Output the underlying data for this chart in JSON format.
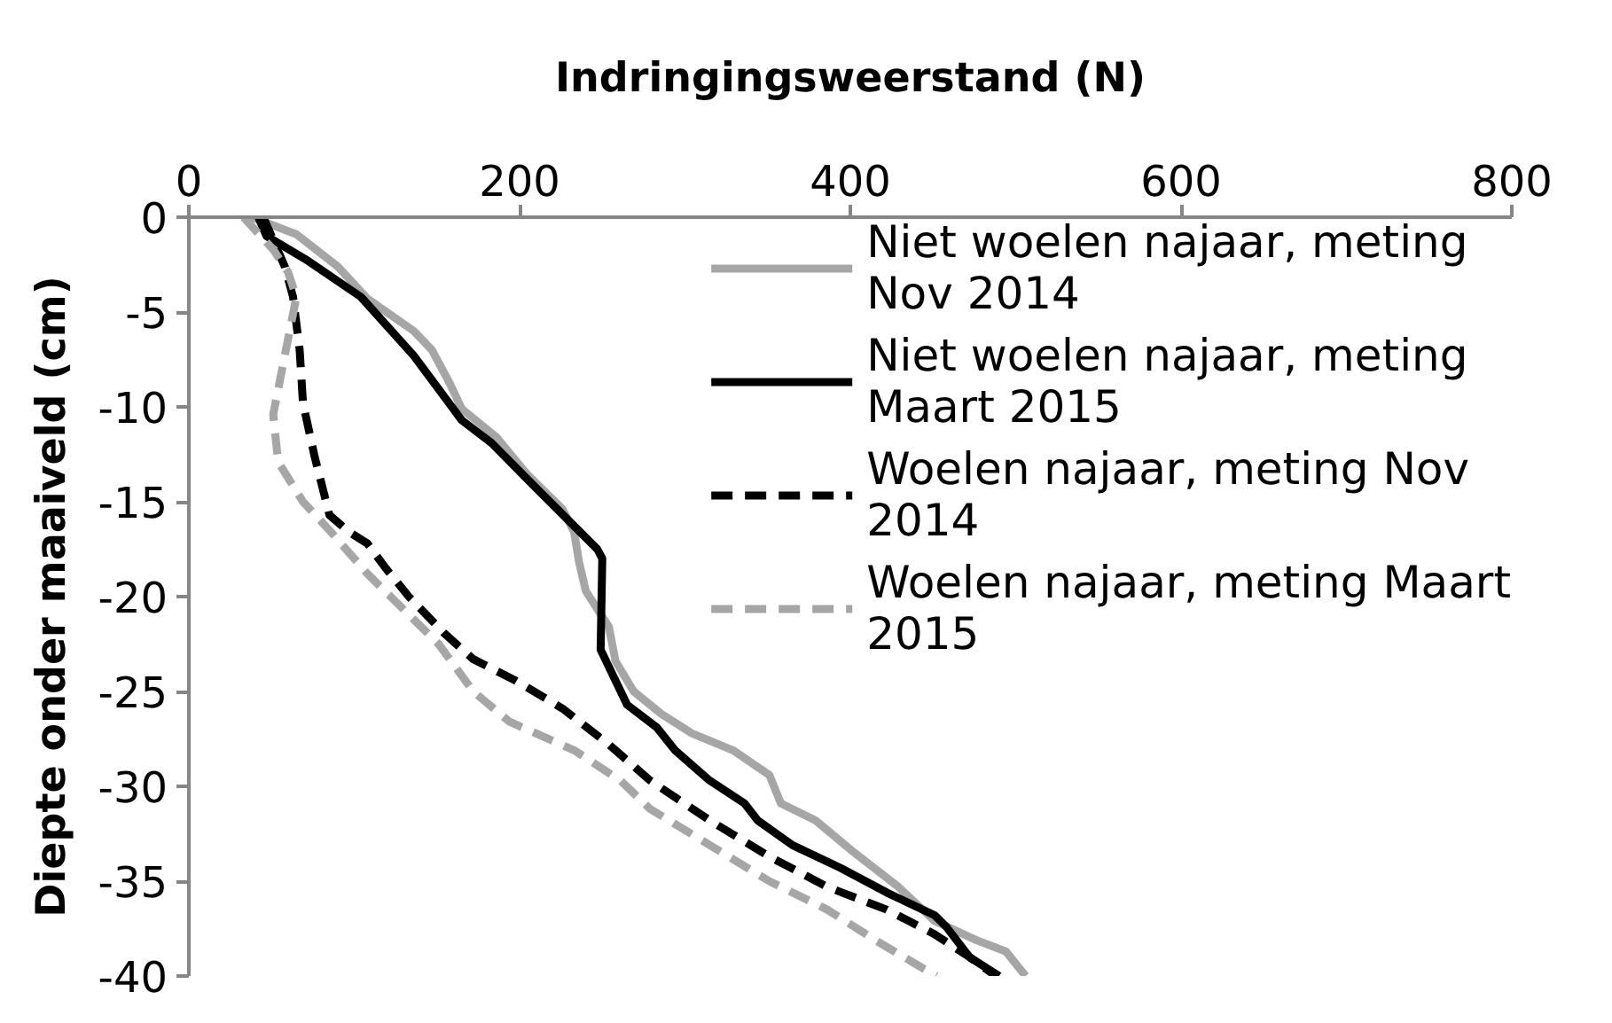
{
  "chart_data": {
    "type": "line",
    "xlabel": "Indringingsweerstand (N)",
    "ylabel": "Diepte onder maaiveld (cm)",
    "xlim": [
      0,
      800
    ],
    "xticks": [
      0,
      200,
      400,
      600,
      800
    ],
    "ylim": [
      -40,
      0
    ],
    "yticks": [
      0,
      -5,
      -10,
      -15,
      -20,
      -25,
      -30,
      -35,
      -40
    ],
    "grid": false,
    "legend": "top right",
    "series": [
      {
        "name": "Niet woelen najaar, meting Nov 2014",
        "color": "#a6a6a6",
        "line_style": "solid",
        "x": [
          38,
          65,
          90,
          108,
          136,
          147,
          158,
          165,
          186,
          204,
          226,
          233,
          236,
          240,
          254,
          258,
          269,
          286,
          304,
          329,
          351,
          358,
          379,
          401,
          429,
          451,
          476,
          494,
          506
        ],
        "values": [
          0,
          -0.9,
          -2.6,
          -4.3,
          -6.0,
          -7.0,
          -8.8,
          -10.1,
          -11.6,
          -13.5,
          -15.4,
          -16.6,
          -18.2,
          -19.7,
          -21.6,
          -23.4,
          -25.0,
          -26.2,
          -27.2,
          -28.1,
          -29.4,
          -30.9,
          -31.8,
          -33.4,
          -35.3,
          -37.1,
          -38.1,
          -38.7,
          -40
        ]
      },
      {
        "name": "Niet woelen najaar, meting Maart 2015",
        "color": "#000000",
        "line_style": "solid",
        "x": [
          42,
          47,
          72,
          104,
          136,
          165,
          183,
          208,
          247,
          250,
          249,
          265,
          283,
          294,
          315,
          336,
          344,
          365,
          394,
          422,
          451,
          458,
          472,
          490
        ],
        "values": [
          0,
          -1.0,
          -2.3,
          -4.2,
          -7.3,
          -10.7,
          -11.9,
          -14.1,
          -17.5,
          -18.0,
          -22.8,
          -25.7,
          -26.9,
          -28.1,
          -29.7,
          -30.9,
          -31.8,
          -33.1,
          -34.3,
          -35.6,
          -36.8,
          -37.4,
          -39.0,
          -40
        ]
      },
      {
        "name": "Woelen najaar, meting Nov 2014",
        "color": "#000000",
        "line_style": "dashed",
        "x": [
          45,
          58,
          63,
          67,
          69,
          76,
          85,
          97,
          108,
          119,
          133,
          154,
          172,
          197,
          226,
          254,
          279,
          315,
          351,
          386,
          422,
          451,
          472,
          488
        ],
        "values": [
          0,
          -2.6,
          -4.2,
          -7.0,
          -9.8,
          -12.6,
          -15.7,
          -16.6,
          -17.2,
          -18.5,
          -20.0,
          -21.9,
          -23.3,
          -24.4,
          -25.9,
          -27.8,
          -29.7,
          -31.8,
          -33.7,
          -35.3,
          -36.5,
          -37.8,
          -39.0,
          -40
        ]
      },
      {
        "name": "Woelen najaar, meting Maart 2015",
        "color": "#a6a6a6",
        "line_style": "dashed",
        "x": [
          33,
          51,
          60,
          65,
          58,
          51,
          54,
          69,
          86,
          108,
          129,
          151,
          172,
          194,
          233,
          261,
          279,
          315,
          351,
          386,
          415,
          444,
          452
        ],
        "values": [
          0,
          -1.7,
          -2.9,
          -4.2,
          -7.3,
          -10.4,
          -12.9,
          -15.0,
          -16.6,
          -18.8,
          -20.6,
          -22.5,
          -25.0,
          -26.6,
          -28.1,
          -29.7,
          -31.2,
          -33.1,
          -35.0,
          -36.5,
          -38.1,
          -39.6,
          -40
        ]
      }
    ]
  }
}
